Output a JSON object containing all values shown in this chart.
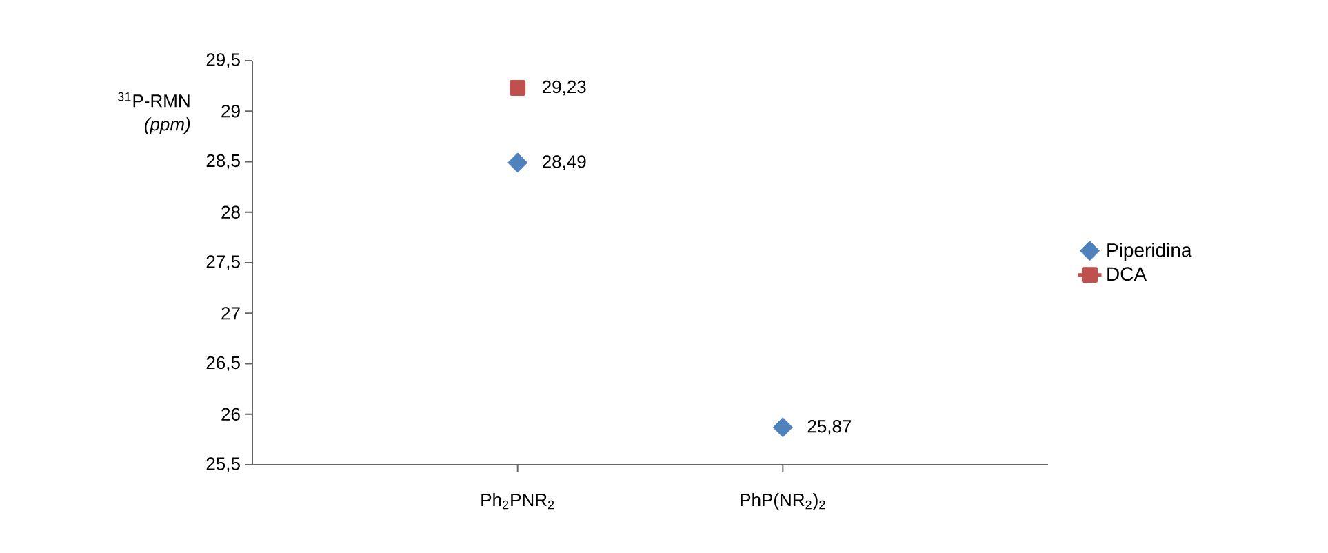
{
  "chart_data": {
    "type": "scatter",
    "ylabel": "$^{31}$P-RMN *(ppm)*",
    "categories": [
      "Ph$_{2}$PNR$_{2}$",
      "PhP(NR$_{2}$)$_{2}$"
    ],
    "series": [
      {
        "name": "Piperidina",
        "marker": "diamond",
        "color": "#4f81bd",
        "values": [
          28.49,
          25.87
        ],
        "value_labels": [
          "28,49",
          "25,87"
        ]
      },
      {
        "name": "DCA",
        "type": "line",
        "marker": "square",
        "color": "#c0504d",
        "values": [
          29.23,
          null
        ],
        "value_labels": [
          "29,23",
          null
        ]
      }
    ],
    "ylim": [
      25.5,
      29.5
    ],
    "yticks": [
      {
        "value": 25.5,
        "label": "25,5"
      },
      26,
      {
        "value": 26.5,
        "label": "26,5"
      },
      27,
      {
        "value": 27.5,
        "label": "27,5"
      },
      28,
      {
        "value": 28.5,
        "label": "28,5"
      },
      29,
      {
        "value": 29.5,
        "label": "29,5"
      }
    ],
    "grid": false,
    "legend": "right"
  }
}
